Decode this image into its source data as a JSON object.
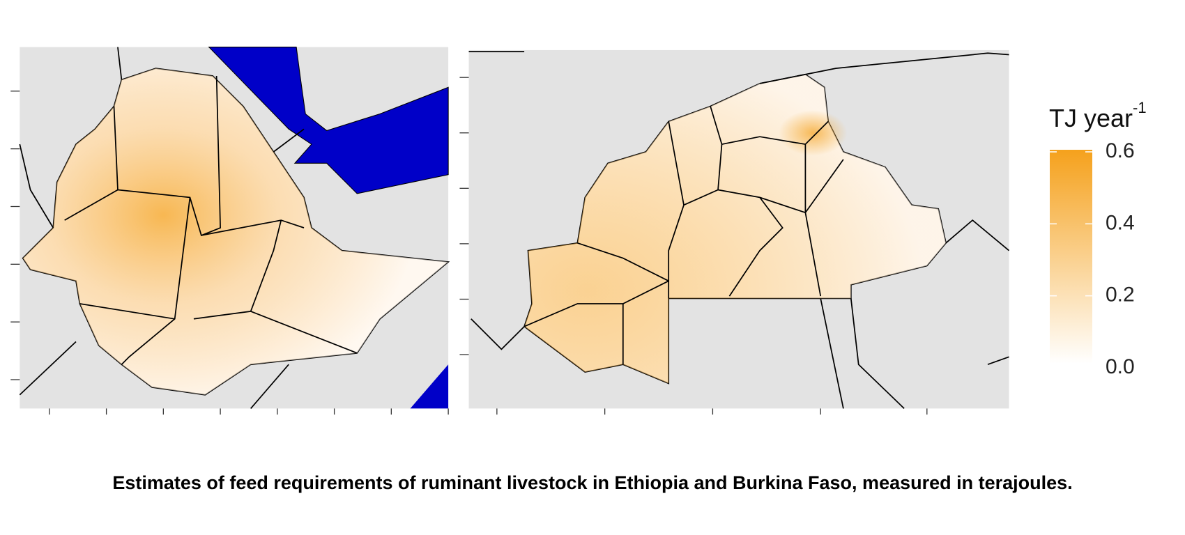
{
  "figure": {
    "caption": "Estimates of feed requirements of ruminant livestock in Ethiopia and Burkina Faso, measured in terajoules.",
    "legend": {
      "title": "TJ year",
      "title_superscript": "-1",
      "range": [
        0,
        0.6
      ],
      "colors": [
        "#ffffff",
        "#f5a11c"
      ],
      "ticks": [
        {
          "value": 0,
          "label": "0.0"
        },
        0.2,
        0.4,
        0.6
      ]
    }
  }
}
